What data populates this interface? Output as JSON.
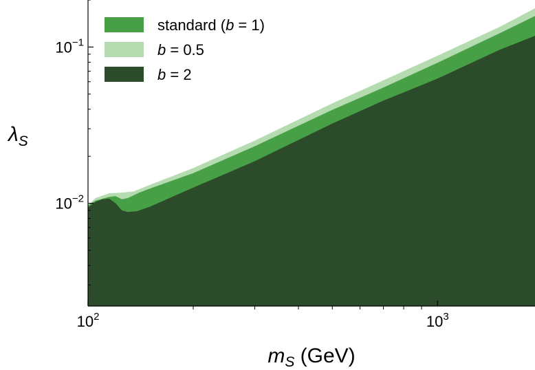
{
  "chart_data": {
    "type": "area",
    "title": "",
    "xlabel": {
      "main": "m",
      "sub": "S",
      "unit": "(GeV)"
    },
    "ylabel": {
      "main": "λ",
      "sub": "S"
    },
    "xscale": "log",
    "yscale": "log",
    "xlim": [
      100,
      1900
    ],
    "ylim": [
      0.0022,
      0.2
    ],
    "grid": false,
    "legend_position": "top-left",
    "x_ticks": [
      {
        "value": 100,
        "base": "10",
        "exp": "2"
      },
      {
        "value": 1000,
        "base": "10",
        "exp": "3"
      }
    ],
    "y_ticks": [
      {
        "value": 0.01,
        "base": "10",
        "exp": "−2"
      },
      {
        "value": 0.1,
        "base": "10",
        "exp": "−1"
      }
    ],
    "series": [
      {
        "name": "b = 0.5",
        "legend": {
          "pre": "",
          "italic": "b",
          "post": " = 0.5"
        },
        "color": "#b5dbb1",
        "points": [
          [
            100,
            0.0097
          ],
          [
            105,
            0.0108
          ],
          [
            115,
            0.0116
          ],
          [
            125,
            0.0117
          ],
          [
            135,
            0.0119
          ],
          [
            150,
            0.0131
          ],
          [
            200,
            0.0168
          ],
          [
            300,
            0.0252
          ],
          [
            500,
            0.0436
          ],
          [
            700,
            0.0612
          ],
          [
            1000,
            0.088
          ],
          [
            1500,
            0.134
          ],
          [
            1900,
            0.177
          ]
        ]
      },
      {
        "name": "standard (b = 1)",
        "legend": {
          "pre": "standard (",
          "italic": "b",
          "post": " = 1)"
        },
        "color": "#48a046",
        "points": [
          [
            100,
            0.0097
          ],
          [
            105,
            0.0104
          ],
          [
            115,
            0.011
          ],
          [
            120,
            0.0111
          ],
          [
            125,
            0.0106
          ],
          [
            130,
            0.0108
          ],
          [
            140,
            0.0117
          ],
          [
            150,
            0.0124
          ],
          [
            200,
            0.0156
          ],
          [
            300,
            0.0232
          ],
          [
            500,
            0.0396
          ],
          [
            700,
            0.0551
          ],
          [
            1000,
            0.0793
          ],
          [
            1500,
            0.122
          ],
          [
            1900,
            0.158
          ]
        ]
      },
      {
        "name": "b = 2",
        "legend": {
          "pre": "",
          "italic": "b",
          "post": " = 2"
        },
        "color": "#2c4b2a",
        "points": [
          [
            100,
            0.0094
          ],
          [
            105,
            0.0102
          ],
          [
            110,
            0.0106
          ],
          [
            115,
            0.0107
          ],
          [
            120,
            0.01
          ],
          [
            125,
            0.009
          ],
          [
            130,
            0.0088
          ],
          [
            138,
            0.0089
          ],
          [
            150,
            0.0095
          ],
          [
            200,
            0.0126
          ],
          [
            300,
            0.0186
          ],
          [
            500,
            0.0324
          ],
          [
            700,
            0.0454
          ],
          [
            1000,
            0.0628
          ],
          [
            1500,
            0.0957
          ],
          [
            1900,
            0.118
          ]
        ]
      }
    ],
    "legend_order": [
      "standard (b = 1)",
      "b = 0.5",
      "b = 2"
    ]
  }
}
